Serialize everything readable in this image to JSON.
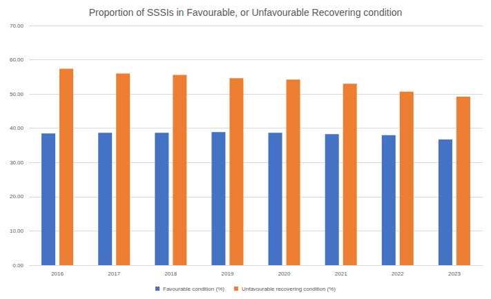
{
  "chart_data": {
    "type": "bar",
    "title": "Proportion of SSSIs in Favourable, or Unfavourable Recovering condition",
    "categories": [
      "2016",
      "2017",
      "2018",
      "2019",
      "2020",
      "2021",
      "2022",
      "2023"
    ],
    "series": [
      {
        "name": "Favourable condition (%)",
        "color": "#4472c4",
        "values": [
          38.5,
          38.7,
          38.7,
          38.9,
          38.7,
          38.3,
          38.0,
          36.7
        ]
      },
      {
        "name": "Unfavourable recovering condition (%)",
        "color": "#ed7d31",
        "values": [
          57.4,
          56.0,
          55.6,
          54.6,
          54.2,
          53.0,
          50.7,
          49.2
        ]
      }
    ],
    "ylim": [
      0,
      70
    ],
    "yticks": [
      {
        "value": 0,
        "label": "0.00"
      },
      {
        "value": 10,
        "label": "10.00"
      },
      {
        "value": 20,
        "label": "20.00"
      },
      {
        "value": 30,
        "label": "30.00"
      },
      {
        "value": 40,
        "label": "40.00"
      },
      {
        "value": 50,
        "label": "50.00"
      },
      {
        "value": 60,
        "label": "60.00"
      },
      {
        "value": 70,
        "label": "70.00"
      }
    ],
    "grid": true,
    "legend": "bottom"
  }
}
